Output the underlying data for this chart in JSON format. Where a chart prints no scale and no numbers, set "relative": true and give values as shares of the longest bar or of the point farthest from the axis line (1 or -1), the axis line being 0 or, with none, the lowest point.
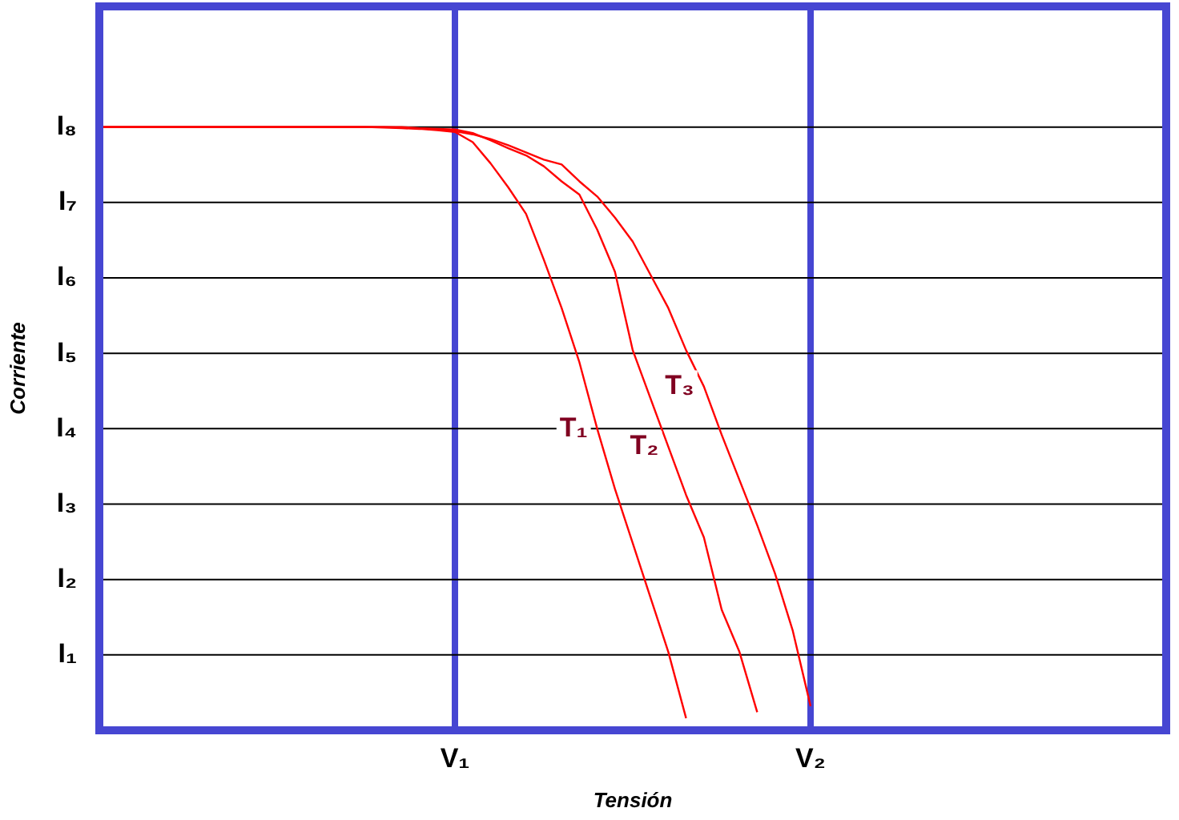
{
  "chart_data": {
    "type": "line",
    "xlabel": "Tensión",
    "ylabel": "Corriente",
    "relative": true,
    "grid": "x",
    "categories": [
      null,
      null,
      null,
      null,
      null,
      null,
      null,
      null,
      null,
      null,
      null,
      null,
      null,
      null,
      null,
      null,
      null,
      null,
      null,
      null,
      "V₁",
      null,
      null,
      null,
      null,
      null,
      null,
      null,
      null,
      null,
      null,
      null,
      null,
      null,
      null,
      null,
      null,
      null,
      null,
      null,
      "V₂",
      null,
      null,
      null,
      null,
      null,
      null,
      null,
      null,
      null,
      null,
      null,
      null,
      null,
      null,
      null,
      null,
      null,
      null,
      null,
      null
    ],
    "ref_lines": [
      {
        "axis": "y",
        "value": 0.125,
        "label": "I₁",
        "color": "#000000"
      },
      {
        "axis": "y",
        "value": 0.25,
        "label": "I₂",
        "color": "#000000"
      },
      {
        "axis": "y",
        "value": 0.375,
        "label": "I₃",
        "color": "#000000"
      },
      {
        "axis": "y",
        "value": 0.5,
        "label": "I₄",
        "color": "#000000"
      },
      {
        "axis": "y",
        "value": 0.625,
        "label": "I₅",
        "color": "#000000"
      },
      {
        "axis": "y",
        "value": 0.75,
        "label": "I₆",
        "color": "#000000"
      },
      {
        "axis": "y",
        "value": 0.875,
        "label": "I₇",
        "color": "#000000"
      },
      {
        "axis": "y",
        "value": 1,
        "label": "I₈",
        "color": "#000000"
      }
    ],
    "legend": false,
    "marker": "none",
    "line_style": "solid",
    "series": [
      {
        "name": "T₁",
        "color": "#ff0000",
        "values": [
          1,
          1,
          1,
          1,
          1,
          1,
          1,
          1,
          1,
          1,
          1,
          1,
          1,
          1,
          1,
          1,
          0.999,
          0.998,
          0.997,
          0.995,
          0.992,
          0.975,
          0.94,
          0.9,
          0.856,
          0.78,
          0.7,
          0.61,
          0.5,
          0.4,
          0.31,
          0.22,
          0.13,
          0.02,
          null,
          null,
          null,
          null,
          null,
          null,
          null,
          null,
          null,
          null,
          null,
          null,
          null,
          null,
          null,
          null,
          null,
          null,
          null,
          null,
          null,
          null,
          null,
          null,
          null,
          null,
          null
        ]
      },
      {
        "name": "T₂",
        "color": "#ff0000",
        "values": [
          1,
          1,
          1,
          1,
          1,
          1,
          1,
          1,
          1,
          1,
          1,
          1,
          1,
          1,
          1,
          1,
          1,
          0.999,
          0.998,
          0.997,
          0.996,
          0.99,
          0.978,
          0.965,
          0.953,
          0.935,
          0.91,
          0.888,
          0.83,
          0.76,
          0.63,
          0.55,
          0.47,
          0.39,
          0.32,
          0.2,
          0.13,
          0.03,
          null,
          null,
          null,
          null,
          null,
          null,
          null,
          null,
          null,
          null,
          null,
          null,
          null,
          null,
          null,
          null,
          null,
          null,
          null,
          null,
          null,
          null,
          null
        ]
      },
      {
        "name": "T₃",
        "color": "#ff0000",
        "values": [
          1,
          1,
          1,
          1,
          1,
          1,
          1,
          1,
          1,
          1,
          1,
          1,
          1,
          1,
          1,
          1,
          1,
          1,
          0.998,
          0.996,
          0.993,
          0.988,
          0.98,
          0.97,
          0.958,
          0.946,
          0.938,
          0.91,
          0.885,
          0.85,
          0.81,
          0.755,
          0.7,
          0.63,
          0.57,
          0.49,
          0.415,
          0.34,
          0.26,
          0.165,
          0.04,
          null,
          null,
          null,
          null,
          null,
          null,
          null,
          null,
          null,
          null,
          null,
          null,
          null,
          null,
          null,
          null,
          null,
          null,
          null,
          null
        ]
      }
    ]
  }
}
